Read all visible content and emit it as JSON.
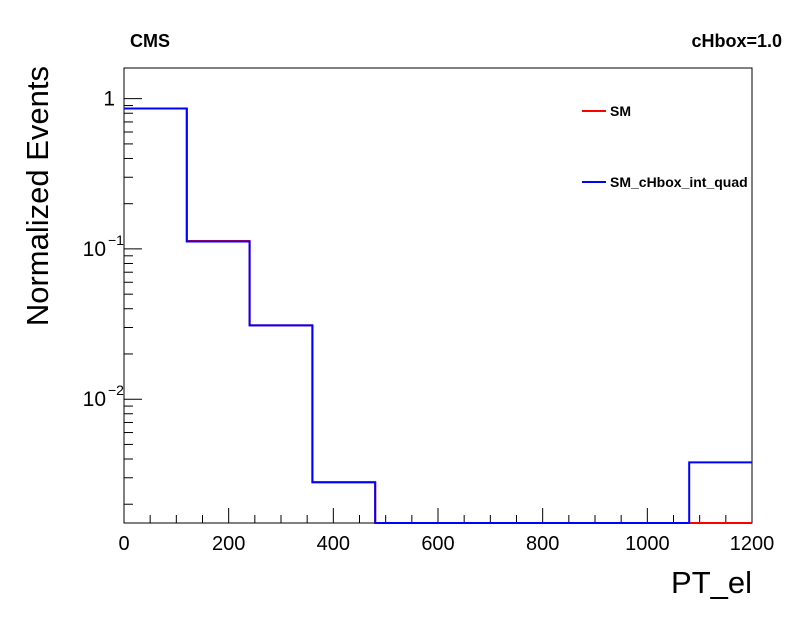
{
  "header": {
    "left_label": "CMS",
    "right_label": "cHbox=1.0"
  },
  "chart_data": {
    "type": "histogram",
    "title": "",
    "xlabel": "PT_el",
    "ylabel": "Normalized Events",
    "xlim": [
      0,
      1200
    ],
    "ylim": [
      0.0015,
      1.6
    ],
    "yscale": "log",
    "bin_edges": [
      0,
      120,
      240,
      360,
      480,
      600,
      720,
      840,
      960,
      1080,
      1200
    ],
    "x_ticks": [
      "0",
      "200",
      "400",
      "600",
      "800",
      "1000",
      "1200"
    ],
    "y_ticks": [
      {
        "value": 1,
        "base": "1",
        "exp": ""
      },
      {
        "value": 0.1,
        "base": "10",
        "exp": "−1"
      },
      {
        "value": 0.01,
        "base": "10",
        "exp": "−2"
      }
    ],
    "grid": false,
    "legend_position": "top-right",
    "series": [
      {
        "name": "SM",
        "color": "#ff0000",
        "values": [
          0.86,
          0.113,
          0.031,
          0.0028,
          0,
          0,
          0,
          0,
          0,
          0
        ]
      },
      {
        "name": "SM_cHbox_int_quad",
        "color": "#0000ff",
        "values": [
          0.86,
          0.112,
          0.031,
          0.0028,
          0,
          0,
          0,
          0,
          0,
          0.0038
        ]
      }
    ]
  }
}
